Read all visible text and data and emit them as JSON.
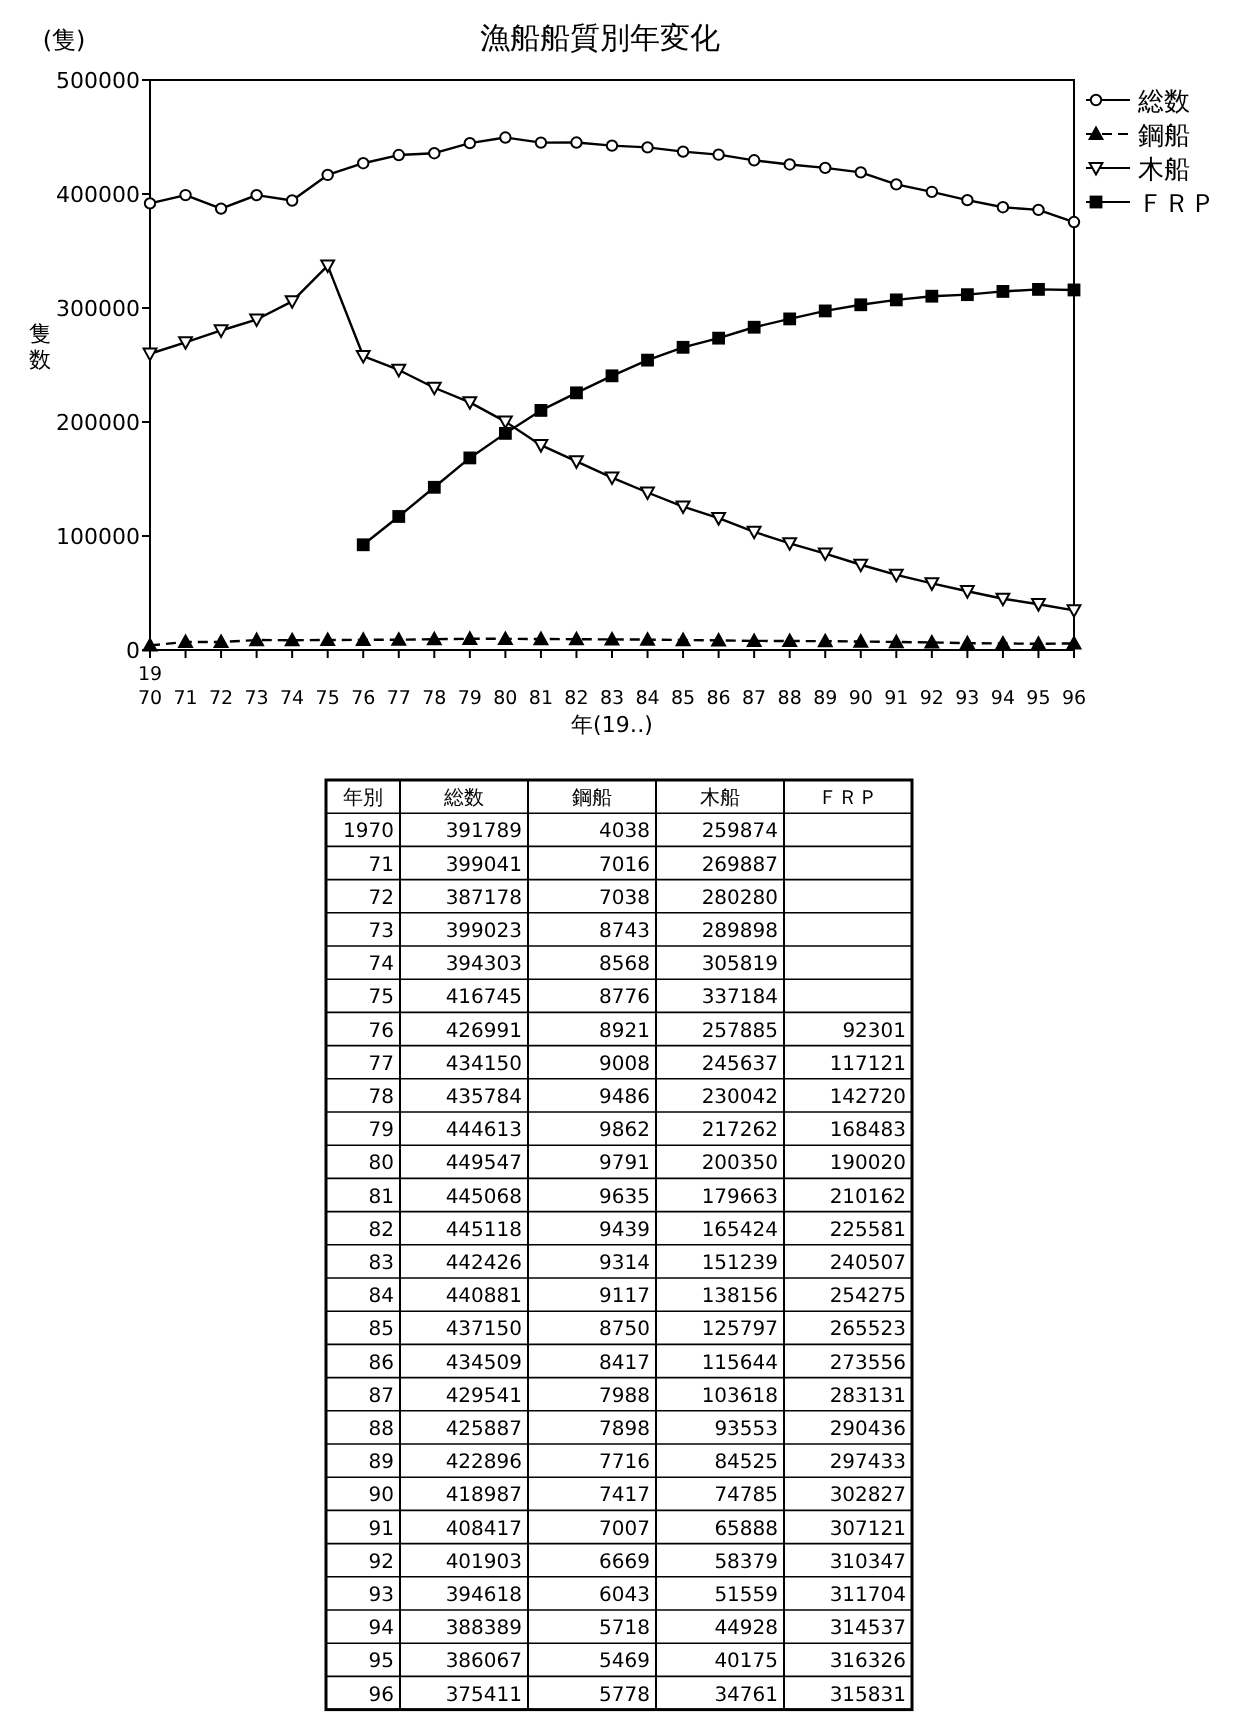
{
  "chart_data": [
    {
      "type": "line",
      "title": "漁船船質別年変化",
      "xlabel": "年(19‥)",
      "ylabel": "隻数",
      "annotations": [
        "(隻)",
        "19"
      ],
      "categories": [
        "70",
        "71",
        "72",
        "73",
        "74",
        "75",
        "76",
        "77",
        "78",
        "79",
        "80",
        "81",
        "82",
        "83",
        "84",
        "85",
        "86",
        "87",
        "88",
        "89",
        "90",
        "91",
        "92",
        "93",
        "94",
        "95",
        "96"
      ],
      "series": [
        {
          "name": "総数",
          "color": "#000000",
          "marker": "circle",
          "line_style": "solid",
          "values": [
            391789,
            399041,
            387178,
            399023,
            394303,
            416745,
            426991,
            434150,
            435784,
            444613,
            449547,
            445068,
            445118,
            442426,
            440881,
            437150,
            434509,
            429541,
            425887,
            422896,
            418987,
            408417,
            401903,
            394618,
            388389,
            386067,
            375411
          ]
        },
        {
          "name": "鋼船",
          "color": "#000000",
          "marker": "triangle",
          "line_style": "dashed",
          "values": [
            4038,
            7016,
            7038,
            8743,
            8568,
            8776,
            8921,
            9008,
            9486,
            9862,
            9791,
            9635,
            9439,
            9314,
            9117,
            8750,
            8417,
            7988,
            7898,
            7716,
            7417,
            7007,
            6669,
            6043,
            5718,
            5469,
            5778
          ]
        },
        {
          "name": "木船",
          "color": "#000000",
          "marker": "triangle",
          "line_style": "solid",
          "values": [
            259874,
            269887,
            280280,
            289898,
            305819,
            337184,
            257885,
            245637,
            230042,
            217262,
            200350,
            179663,
            165424,
            151239,
            138156,
            125797,
            115644,
            103618,
            93553,
            84525,
            74785,
            65888,
            58379,
            51559,
            44928,
            40175,
            34761
          ]
        },
        {
          "name": "ＦＲＰ",
          "color": "#000000",
          "marker": "square",
          "line_style": "solid",
          "values": [
            null,
            null,
            null,
            null,
            null,
            null,
            92301,
            117121,
            142720,
            168483,
            190020,
            210162,
            225581,
            240507,
            254275,
            265523,
            273556,
            283131,
            290436,
            297433,
            302827,
            307121,
            310347,
            311704,
            314537,
            316326,
            315831
          ]
        }
      ],
      "ylim": [
        0,
        500000
      ],
      "yticks": [
        0,
        100000,
        200000,
        300000,
        400000,
        500000
      ],
      "grid": false,
      "legend": "right"
    },
    {
      "type": "heatmap",
      "ylabel": "年別",
      "data_labels": true,
      "categories": [
        "総数",
        "鋼船",
        "木船",
        "ＦＲＰ"
      ],
      "y_categories": [
        "1970",
        "71",
        "72",
        "73",
        "74",
        "75",
        "76",
        "77",
        "78",
        "79",
        "80",
        "81",
        "82",
        "83",
        "84",
        "85",
        "86",
        "87",
        "88",
        "89",
        "90",
        "91",
        "92",
        "93",
        "94",
        "95",
        "96"
      ],
      "cells": [
        [
          391789,
          4038,
          259874,
          null
        ],
        [
          399041,
          7016,
          269887,
          null
        ],
        [
          387178,
          7038,
          280280,
          null
        ],
        [
          399023,
          8743,
          289898,
          null
        ],
        [
          394303,
          8568,
          305819,
          null
        ],
        [
          416745,
          8776,
          337184,
          null
        ],
        [
          426991,
          8921,
          257885,
          92301
        ],
        [
          434150,
          9008,
          245637,
          117121
        ],
        [
          435784,
          9486,
          230042,
          142720
        ],
        [
          444613,
          9862,
          217262,
          168483
        ],
        [
          449547,
          9791,
          200350,
          190020
        ],
        [
          445068,
          9635,
          179663,
          210162
        ],
        [
          445118,
          9439,
          165424,
          225581
        ],
        [
          442426,
          9314,
          151239,
          240507
        ],
        [
          440881,
          9117,
          138156,
          254275
        ],
        [
          437150,
          8750,
          125797,
          265523
        ],
        [
          434509,
          8417,
          115644,
          273556
        ],
        [
          429541,
          7988,
          103618,
          283131
        ],
        [
          425887,
          7898,
          93553,
          290436
        ],
        [
          422896,
          7716,
          84525,
          297433
        ],
        [
          418987,
          7417,
          74785,
          302827
        ],
        [
          408417,
          7007,
          65888,
          307121
        ],
        [
          401903,
          6669,
          58379,
          310347
        ],
        [
          394618,
          6043,
          51559,
          311704
        ],
        [
          388389,
          5718,
          44928,
          314537
        ],
        [
          386067,
          5469,
          40175,
          316326
        ],
        [
          375411,
          5778,
          34761,
          315831
        ]
      ]
    }
  ]
}
